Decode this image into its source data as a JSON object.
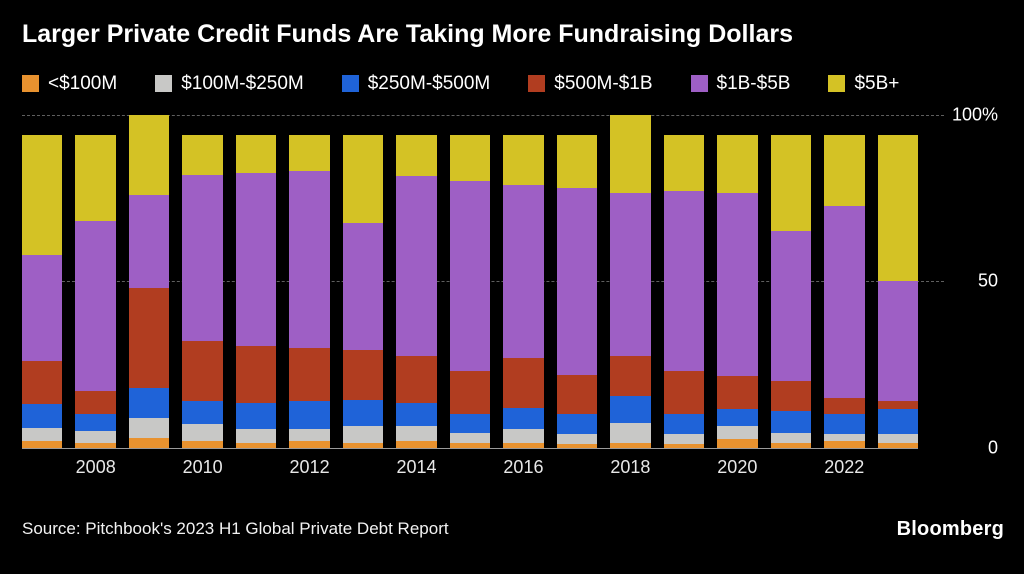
{
  "title": "Larger Private Credit Funds Are Taking More Fundraising Dollars",
  "source": "Source: Pitchbook's 2023 H1 Global Private Debt Report",
  "logo": "Bloomberg",
  "chart_data": {
    "type": "bar",
    "stacked": true,
    "normalized": "percent of fundraising dollars",
    "title": "Larger Private Credit Funds Are Taking More Fundraising Dollars",
    "categories": [
      "2007",
      "2008",
      "2009",
      "2010",
      "2011",
      "2012",
      "2013",
      "2014",
      "2015",
      "2016",
      "2017",
      "2018",
      "2019",
      "2020",
      "2021",
      "2022",
      "2023"
    ],
    "x_tick_labels": [
      "2008",
      "2010",
      "2012",
      "2014",
      "2016",
      "2018",
      "2020",
      "2022"
    ],
    "ylim": [
      0,
      100
    ],
    "y_ticks": [
      {
        "label": "100%",
        "value": 100
      },
      {
        "label": "50",
        "value": 50
      },
      {
        "label": "0",
        "value": 0
      }
    ],
    "legend_position": "top",
    "series": [
      {
        "name": "<$100M",
        "color": "#e8922f",
        "values": [
          2,
          1.5,
          3,
          2,
          1.5,
          2,
          1.5,
          2,
          1.5,
          1.5,
          1,
          1.5,
          1,
          2.5,
          1.5,
          2,
          1.5
        ]
      },
      {
        "name": "$100M-$250M",
        "color": "#c8c8c6",
        "values": [
          4,
          3.5,
          6,
          5,
          4,
          3.5,
          5,
          4.5,
          3,
          4,
          3,
          6,
          3,
          4,
          3,
          2,
          2.5
        ]
      },
      {
        "name": "$250M-$500M",
        "color": "#1f63d8",
        "values": [
          7,
          5,
          9,
          7,
          8,
          8.5,
          8,
          7,
          5.5,
          6.5,
          6,
          8,
          6,
          5,
          6.5,
          6,
          7.5
        ]
      },
      {
        "name": "$500M-$1B",
        "color": "#b13d20",
        "values": [
          13,
          7,
          30,
          18,
          17,
          16,
          15,
          14,
          13,
          15,
          12,
          12,
          13,
          10,
          9,
          5,
          2.5
        ]
      },
      {
        "name": "$1B-$5B",
        "color": "#9e5fc5",
        "values": [
          32,
          51,
          28,
          50,
          52,
          53,
          38,
          54,
          57,
          52,
          56,
          49,
          54,
          55,
          45,
          57.5,
          36
        ]
      },
      {
        "name": "$5B+",
        "color": "#d4c225",
        "values": [
          36,
          26,
          24,
          12,
          11.5,
          11,
          26.5,
          12.5,
          14,
          15,
          16,
          23.5,
          17,
          17.5,
          29,
          21.5,
          44
        ]
      }
    ]
  }
}
